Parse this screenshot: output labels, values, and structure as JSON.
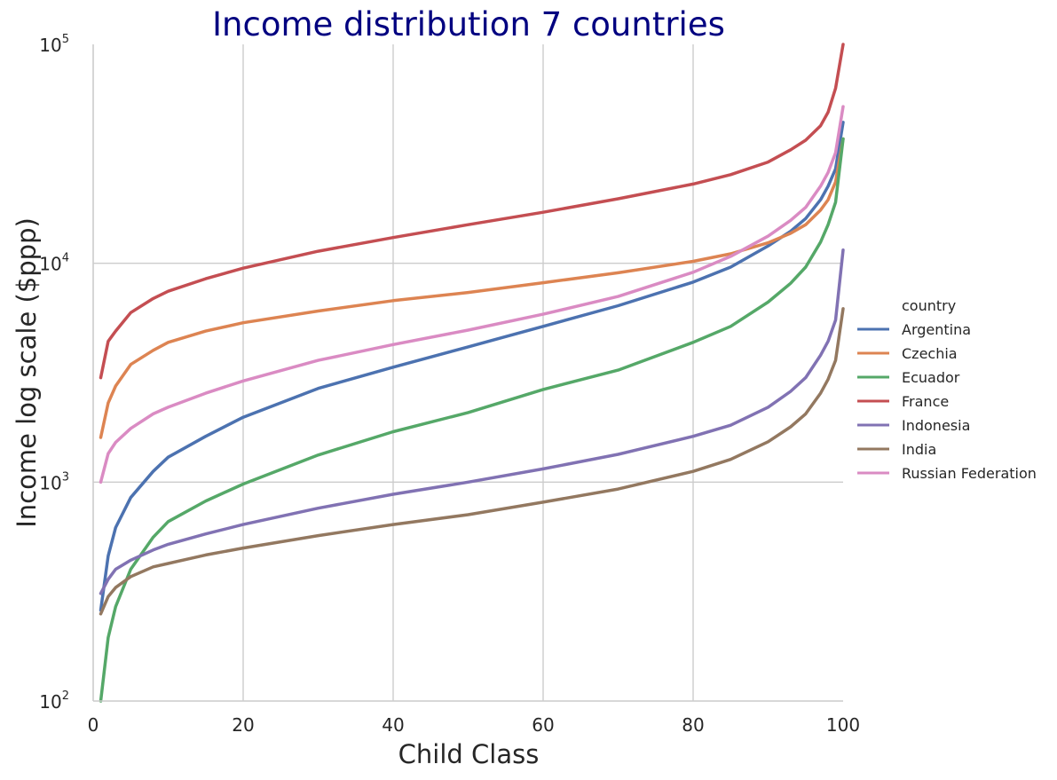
{
  "chart_data": {
    "type": "line",
    "title": "Income distribution 7 countries",
    "xlabel": "Child Class",
    "ylabel": "Income log scale ($ppp)",
    "xlim": [
      0,
      100
    ],
    "ylim": [
      100,
      100000
    ],
    "yscale": "log",
    "x_ticks": [
      "0",
      "20",
      "40",
      "60",
      "80",
      "100"
    ],
    "y_ticks": [
      {
        "base": "10",
        "exp": "2"
      },
      {
        "base": "10",
        "exp": "3"
      },
      {
        "base": "10",
        "exp": "4"
      },
      {
        "base": "10",
        "exp": "5"
      }
    ],
    "grid": true,
    "legend": {
      "title": "country",
      "placement": "right"
    },
    "x": [
      1,
      2,
      3,
      5,
      8,
      10,
      15,
      20,
      30,
      40,
      50,
      60,
      70,
      80,
      85,
      90,
      93,
      95,
      97,
      98,
      99,
      100
    ],
    "series": [
      {
        "name": "Argentina",
        "color": "#4c72b0",
        "values": [
          260,
          460,
          620,
          850,
          1120,
          1300,
          1620,
          1980,
          2680,
          3350,
          4150,
          5150,
          6400,
          8200,
          9600,
          12000,
          14000,
          16000,
          19500,
          22500,
          27000,
          44000
        ]
      },
      {
        "name": "Czechia",
        "color": "#dd8452",
        "values": [
          1600,
          2300,
          2750,
          3450,
          4000,
          4350,
          4900,
          5350,
          6050,
          6750,
          7350,
          8150,
          9050,
          10200,
          11050,
          12400,
          13700,
          15000,
          17500,
          19500,
          23500,
          37000
        ]
      },
      {
        "name": "Ecuador",
        "color": "#55a868",
        "values": [
          100,
          195,
          270,
          400,
          560,
          660,
          820,
          980,
          1330,
          1700,
          2080,
          2650,
          3250,
          4350,
          5150,
          6650,
          8100,
          9600,
          12500,
          15000,
          19000,
          37000
        ]
      },
      {
        "name": "France",
        "color": "#c44e52",
        "values": [
          3000,
          4400,
          4900,
          5950,
          6900,
          7450,
          8500,
          9500,
          11350,
          13100,
          15000,
          17100,
          19700,
          23000,
          25400,
          29000,
          33000,
          36500,
          42500,
          49000,
          63000,
          100000
        ]
      },
      {
        "name": "Indonesia",
        "color": "#8172b3",
        "values": [
          310,
          360,
          400,
          440,
          490,
          520,
          580,
          640,
          760,
          880,
          1000,
          1150,
          1340,
          1620,
          1820,
          2200,
          2600,
          3000,
          3800,
          4400,
          5500,
          11500
        ]
      },
      {
        "name": "India",
        "color": "#937860",
        "values": [
          250,
          300,
          330,
          370,
          410,
          425,
          465,
          500,
          570,
          640,
          710,
          810,
          930,
          1120,
          1270,
          1530,
          1790,
          2050,
          2550,
          2950,
          3600,
          6200
        ]
      },
      {
        "name": "Russian Federation",
        "color": "#da8bc3",
        "values": [
          1000,
          1350,
          1520,
          1760,
          2050,
          2200,
          2550,
          2900,
          3600,
          4250,
          4950,
          5850,
          7050,
          9100,
          10750,
          13300,
          15700,
          18000,
          22500,
          26000,
          32000,
          52000
        ]
      }
    ]
  }
}
